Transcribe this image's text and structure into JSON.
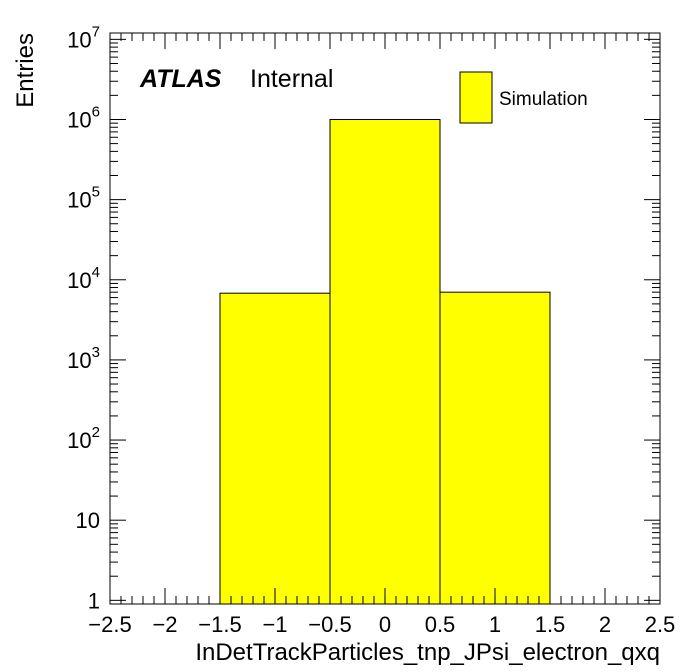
{
  "chart_data": {
    "type": "bar",
    "style": "histogram",
    "xlabel": "InDetTrackParticles_tnp_JPsi_electron_qxq",
    "ylabel": "Entries",
    "xlim": [
      -2.5,
      2.5
    ],
    "ylim": [
      0.9,
      12000000
    ],
    "yscale": "log",
    "bin_edges": [
      -1.5,
      -0.5,
      0.5,
      1.5
    ],
    "series": [
      {
        "name": "Simulation",
        "values": [
          6800,
          1000000,
          7000
        ],
        "color": "#ffff00"
      }
    ],
    "x_ticks": [
      "−2.5",
      "−2",
      "−1.5",
      "−1",
      "−0.5",
      "0",
      "0.5",
      "1",
      "1.5",
      "2",
      "2.5"
    ],
    "y_ticks": [
      {
        "value": 1,
        "base": "1",
        "exp": ""
      },
      {
        "value": 10,
        "base": "10",
        "exp": ""
      },
      {
        "value": 100,
        "base": "10",
        "exp": "2"
      },
      {
        "value": 1000,
        "base": "10",
        "exp": "3"
      },
      {
        "value": 10000,
        "base": "10",
        "exp": "4"
      },
      {
        "value": 100000,
        "base": "10",
        "exp": "5"
      },
      {
        "value": 1000000,
        "base": "10",
        "exp": "6"
      },
      {
        "value": 10000000,
        "base": "10",
        "exp": "7"
      }
    ],
    "legend_position": "top-right",
    "grid": false
  },
  "annotation": {
    "experiment": "ATLAS",
    "status": "Internal"
  }
}
